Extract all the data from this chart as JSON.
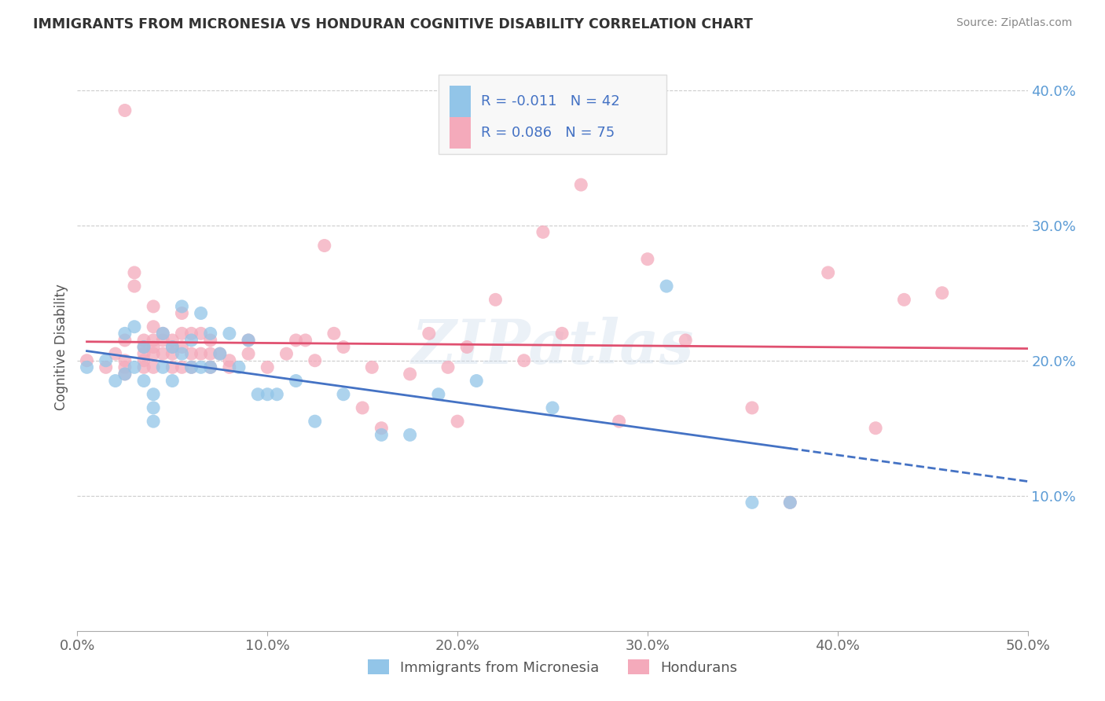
{
  "title": "IMMIGRANTS FROM MICRONESIA VS HONDURAN COGNITIVE DISABILITY CORRELATION CHART",
  "source_text": "Source: ZipAtlas.com",
  "ylabel": "Cognitive Disability",
  "legend_label1": "Immigrants from Micronesia",
  "legend_label2": "Hondurans",
  "R1": "-0.011",
  "N1": "42",
  "R2": "0.086",
  "N2": "75",
  "xlim": [
    0.0,
    0.5
  ],
  "ylim": [
    0.0,
    0.42
  ],
  "xticks": [
    0.0,
    0.1,
    0.2,
    0.3,
    0.4,
    0.5
  ],
  "yticks": [
    0.1,
    0.2,
    0.3,
    0.4
  ],
  "xticklabels": [
    "0.0%",
    "10.0%",
    "20.0%",
    "30.0%",
    "40.0%",
    "50.0%"
  ],
  "yticklabels": [
    "10.0%",
    "20.0%",
    "30.0%",
    "40.0%"
  ],
  "color_blue": "#92C5E8",
  "color_pink": "#F4AABB",
  "color_line_blue": "#4472C4",
  "color_line_pink": "#E05070",
  "color_grid": "#CCCCCC",
  "color_title": "#333333",
  "color_source": "#888888",
  "color_rn_values": "#4472C4",
  "watermark_text": "ZIPatlas",
  "blue_scatter_x": [
    0.005,
    0.015,
    0.02,
    0.025,
    0.025,
    0.03,
    0.03,
    0.035,
    0.035,
    0.04,
    0.04,
    0.04,
    0.045,
    0.045,
    0.05,
    0.05,
    0.055,
    0.055,
    0.06,
    0.06,
    0.065,
    0.065,
    0.07,
    0.07,
    0.075,
    0.08,
    0.085,
    0.09,
    0.095,
    0.1,
    0.105,
    0.115,
    0.125,
    0.14,
    0.16,
    0.175,
    0.19,
    0.21,
    0.25,
    0.31,
    0.355,
    0.375
  ],
  "blue_scatter_y": [
    0.195,
    0.2,
    0.185,
    0.19,
    0.22,
    0.225,
    0.195,
    0.21,
    0.185,
    0.175,
    0.165,
    0.155,
    0.22,
    0.195,
    0.21,
    0.185,
    0.24,
    0.205,
    0.215,
    0.195,
    0.235,
    0.195,
    0.22,
    0.195,
    0.205,
    0.22,
    0.195,
    0.215,
    0.175,
    0.175,
    0.175,
    0.185,
    0.155,
    0.175,
    0.145,
    0.145,
    0.175,
    0.185,
    0.165,
    0.255,
    0.095,
    0.095
  ],
  "pink_scatter_x": [
    0.005,
    0.015,
    0.02,
    0.025,
    0.025,
    0.025,
    0.025,
    0.025,
    0.03,
    0.03,
    0.035,
    0.035,
    0.035,
    0.035,
    0.035,
    0.04,
    0.04,
    0.04,
    0.04,
    0.04,
    0.04,
    0.045,
    0.045,
    0.045,
    0.05,
    0.05,
    0.05,
    0.05,
    0.055,
    0.055,
    0.055,
    0.055,
    0.06,
    0.06,
    0.06,
    0.065,
    0.065,
    0.07,
    0.07,
    0.07,
    0.075,
    0.08,
    0.08,
    0.09,
    0.09,
    0.1,
    0.11,
    0.115,
    0.12,
    0.125,
    0.13,
    0.135,
    0.14,
    0.15,
    0.155,
    0.16,
    0.175,
    0.185,
    0.195,
    0.2,
    0.205,
    0.22,
    0.235,
    0.245,
    0.255,
    0.265,
    0.285,
    0.3,
    0.32,
    0.355,
    0.375,
    0.395,
    0.42,
    0.435,
    0.455
  ],
  "pink_scatter_y": [
    0.2,
    0.195,
    0.205,
    0.385,
    0.215,
    0.2,
    0.195,
    0.19,
    0.265,
    0.255,
    0.215,
    0.21,
    0.205,
    0.2,
    0.195,
    0.24,
    0.225,
    0.215,
    0.21,
    0.205,
    0.195,
    0.22,
    0.215,
    0.205,
    0.215,
    0.21,
    0.205,
    0.195,
    0.235,
    0.22,
    0.21,
    0.195,
    0.22,
    0.205,
    0.195,
    0.22,
    0.205,
    0.215,
    0.205,
    0.195,
    0.205,
    0.2,
    0.195,
    0.215,
    0.205,
    0.195,
    0.205,
    0.215,
    0.215,
    0.2,
    0.285,
    0.22,
    0.21,
    0.165,
    0.195,
    0.15,
    0.19,
    0.22,
    0.195,
    0.155,
    0.21,
    0.245,
    0.2,
    0.295,
    0.22,
    0.33,
    0.155,
    0.275,
    0.215,
    0.165,
    0.095,
    0.265,
    0.15,
    0.245,
    0.25
  ]
}
